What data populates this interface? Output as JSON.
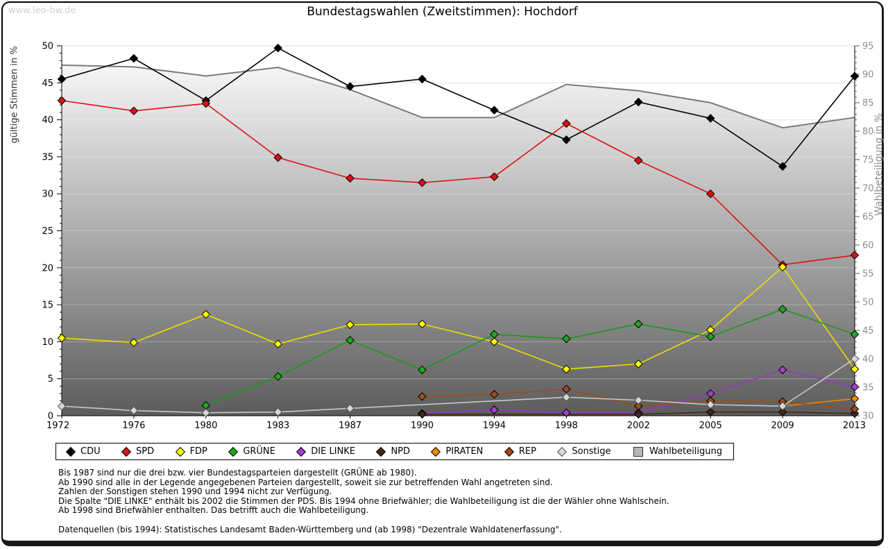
{
  "watermark": "www.leo-bw.de",
  "title": "Bundestagswahlen (Zweitstimmen): Hochdorf",
  "chart_data": {
    "type": "line",
    "categories": [
      "1972",
      "1976",
      "1980",
      "1983",
      "1987",
      "1990",
      "1994",
      "1998",
      "2002",
      "2005",
      "2009",
      "2013"
    ],
    "y_axis": {
      "label": "gültige Stimmen in %",
      "min": 0,
      "max": 50,
      "step": 5,
      "minor_step": 1
    },
    "y2_axis": {
      "label": "Wahlbeteiligung in %",
      "min": 30,
      "max": 95,
      "step": 5,
      "minor_step": 1
    },
    "grid": true,
    "legend_position": "bottom",
    "series": [
      {
        "name": "CDU",
        "axis": "left",
        "color": "#000000",
        "fill": "#000000",
        "marker": "diamond",
        "values": [
          45.5,
          48.3,
          42.6,
          49.7,
          44.5,
          45.5,
          41.3,
          37.3,
          42.4,
          40.2,
          33.7,
          45.9
        ]
      },
      {
        "name": "SPD",
        "axis": "left",
        "color": "#dd1111",
        "fill": "#dd1111",
        "marker": "diamond",
        "values": [
          42.6,
          41.2,
          42.2,
          34.9,
          32.1,
          31.5,
          32.3,
          39.5,
          34.5,
          30.0,
          20.4,
          21.7
        ]
      },
      {
        "name": "FDP",
        "axis": "left",
        "color": "#eedd00",
        "fill": "#ffff00",
        "marker": "diamond",
        "values": [
          10.5,
          9.9,
          13.7,
          9.7,
          12.3,
          12.4,
          10.0,
          6.3,
          7.0,
          11.6,
          20.1,
          6.3
        ]
      },
      {
        "name": "GRÜNE",
        "axis": "left",
        "color": "#169b16",
        "fill": "#1caa1c",
        "marker": "diamond",
        "values": [
          null,
          null,
          1.4,
          5.3,
          10.2,
          6.2,
          11.0,
          10.4,
          12.4,
          10.7,
          14.4,
          11.0
        ]
      },
      {
        "name": "DIE LINKE",
        "axis": "left",
        "color": "#9933cc",
        "fill": "#a23fd0",
        "marker": "diamond",
        "values": [
          null,
          null,
          null,
          null,
          null,
          0.3,
          0.8,
          0.4,
          0.4,
          3.0,
          6.2,
          3.9
        ]
      },
      {
        "name": "NPD",
        "axis": "left",
        "color": "#42291a",
        "fill": "#42291a",
        "marker": "diamond",
        "values": [
          null,
          null,
          null,
          null,
          null,
          0.2,
          null,
          null,
          0.2,
          0.5,
          0.5,
          0.3
        ]
      },
      {
        "name": "PIRATEN",
        "axis": "left",
        "color": "#ee8800",
        "fill": "#ee8800",
        "marker": "diamond",
        "values": [
          null,
          null,
          null,
          null,
          null,
          null,
          null,
          null,
          null,
          null,
          1.3,
          2.3
        ]
      },
      {
        "name": "REP",
        "axis": "left",
        "color": "#a34a1a",
        "fill": "#a34a1a",
        "marker": "diamond",
        "values": [
          null,
          null,
          null,
          null,
          null,
          2.6,
          2.9,
          3.6,
          1.3,
          2.0,
          1.9,
          0.9
        ]
      },
      {
        "name": "Sonstige",
        "axis": "left",
        "color": "#c9c9c9",
        "fill": "#d6d6d6",
        "stroke": "#555555",
        "marker": "diamond",
        "values": [
          1.3,
          0.7,
          0.4,
          0.5,
          1.0,
          null,
          null,
          2.5,
          2.1,
          1.5,
          1.3,
          7.7
        ]
      },
      {
        "name": "Wahlbeteiligung",
        "axis": "right",
        "color": "#7a7a7a",
        "fill": "#b8b8b8",
        "marker": "square",
        "area": true,
        "values": [
          91.6,
          91.3,
          89.7,
          91.2,
          87.3,
          82.4,
          82.4,
          88.2,
          87.1,
          85.0,
          80.6,
          82.4
        ]
      }
    ]
  },
  "notes": [
    "Bis 1987 sind nur die drei bzw. vier Bundestagsparteien dargestellt (GRÜNE ab 1980).",
    "Ab 1990 sind alle in der Legende angegebenen Parteien dargestellt, soweit sie zur betreffenden Wahl angetreten sind.",
    "Zahlen der Sonstigen stehen 1990 und 1994 nicht zur Verfügung.",
    "Die Spalte \"DIE LINKE\" enthält bis 2002 die Stimmen der PDS. Bis 1994 ohne Briefwähler; die Wahlbeteiligung ist die der Wähler ohne Wahlschein.",
    "Ab 1998 sind Briefwähler enthalten. Das betrifft auch die Wahlbeteiligung."
  ],
  "datasource": "Datenquellen (bis 1994): Statistisches Landesamt Baden-Württemberg und (ab 1998) \"Dezentrale Wahldatenerfassung\"."
}
